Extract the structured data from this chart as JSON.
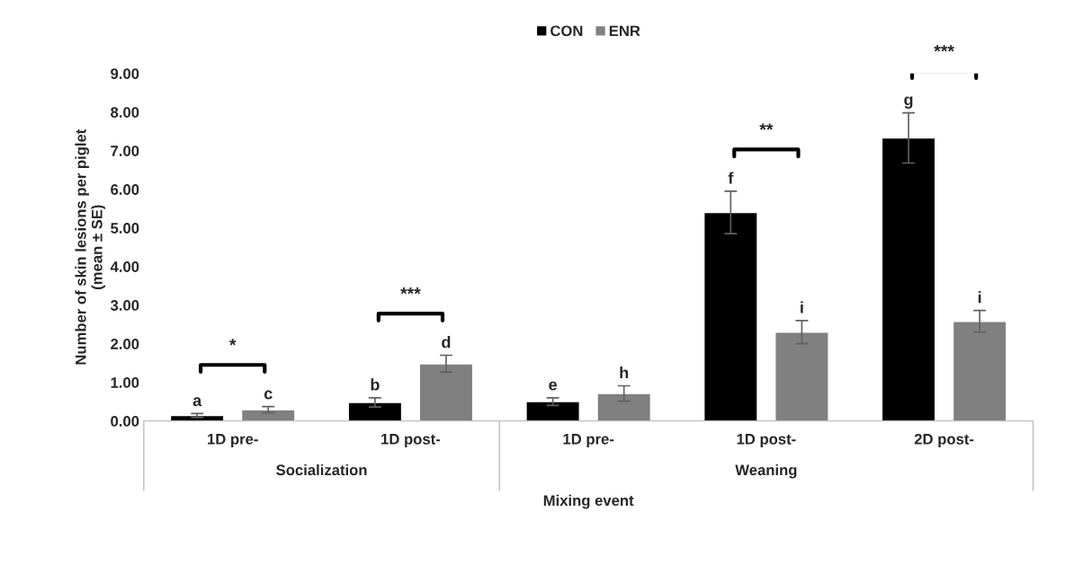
{
  "chart_data": {
    "type": "bar",
    "categories": [
      "1D pre-",
      "1D post-",
      "1D pre-",
      "1D post-",
      "2D post-"
    ],
    "series": [
      {
        "name": "CON",
        "color": "#000000",
        "values": [
          0.14,
          0.48,
          0.5,
          5.4,
          7.33
        ],
        "errors": [
          0.05,
          0.12,
          0.1,
          0.55,
          0.65
        ],
        "value_labels": [
          "a",
          "b",
          "e",
          "f",
          "g"
        ]
      },
      {
        "name": "ENR",
        "color": "#808080",
        "values": [
          0.29,
          1.48,
          0.71,
          2.3,
          2.58
        ],
        "errors": [
          0.08,
          0.22,
          0.2,
          0.3,
          0.28
        ],
        "value_labels": [
          "c",
          "d",
          "h",
          "i",
          "i"
        ]
      }
    ],
    "xlabel": "Mixing event",
    "ylabel": "Number of skin lesions per piglet\n(mean ± SE)",
    "ylim": [
      0,
      9
    ],
    "yticks": [
      {
        "value": 0,
        "label": "0.00"
      },
      {
        "value": 1,
        "label": "1.00"
      },
      {
        "value": 2,
        "label": "2.00"
      },
      {
        "value": 3,
        "label": "3.00"
      },
      {
        "value": 4,
        "label": "4.00"
      },
      {
        "value": 5,
        "label": "5.00"
      },
      {
        "value": 6,
        "label": "6.00"
      },
      {
        "value": 7,
        "label": "7.00"
      },
      {
        "value": 8,
        "label": "8.00"
      },
      {
        "value": 9,
        "label": "9.00"
      }
    ],
    "annotations": [
      "*",
      "***",
      "**",
      "***",
      "Socialization",
      "Weaning"
    ],
    "grid": false,
    "legend": "top"
  }
}
